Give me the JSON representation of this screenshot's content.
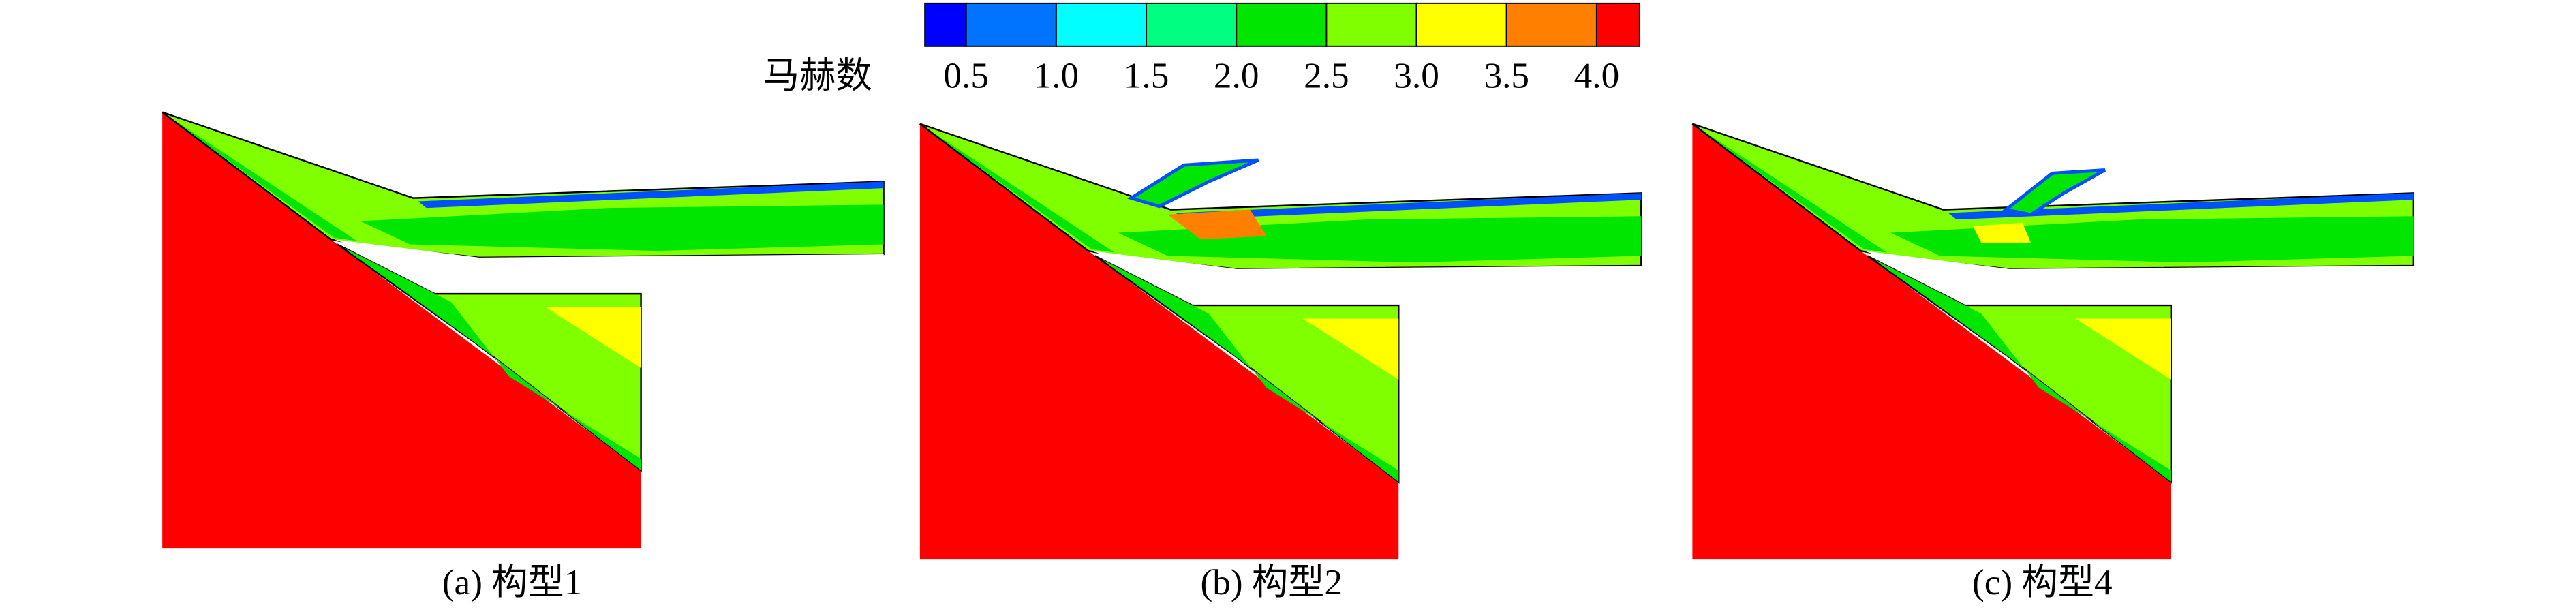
{
  "colorbar": {
    "label": "马赫数",
    "ticks": [
      "0.5",
      "1.0",
      "1.5",
      "2.0",
      "2.5",
      "3.0",
      "3.5",
      "4.0"
    ],
    "colors": [
      "#0000ff",
      "#0073ff",
      "#00ffff",
      "#00ff80",
      "#00e600",
      "#80ff00",
      "#ffff00",
      "#ff8000",
      "#ff0000"
    ]
  },
  "panels": [
    {
      "caption": "(a) 构型1"
    },
    {
      "caption": "(b) 构型2"
    },
    {
      "caption": "(c) 构型4"
    }
  ]
}
